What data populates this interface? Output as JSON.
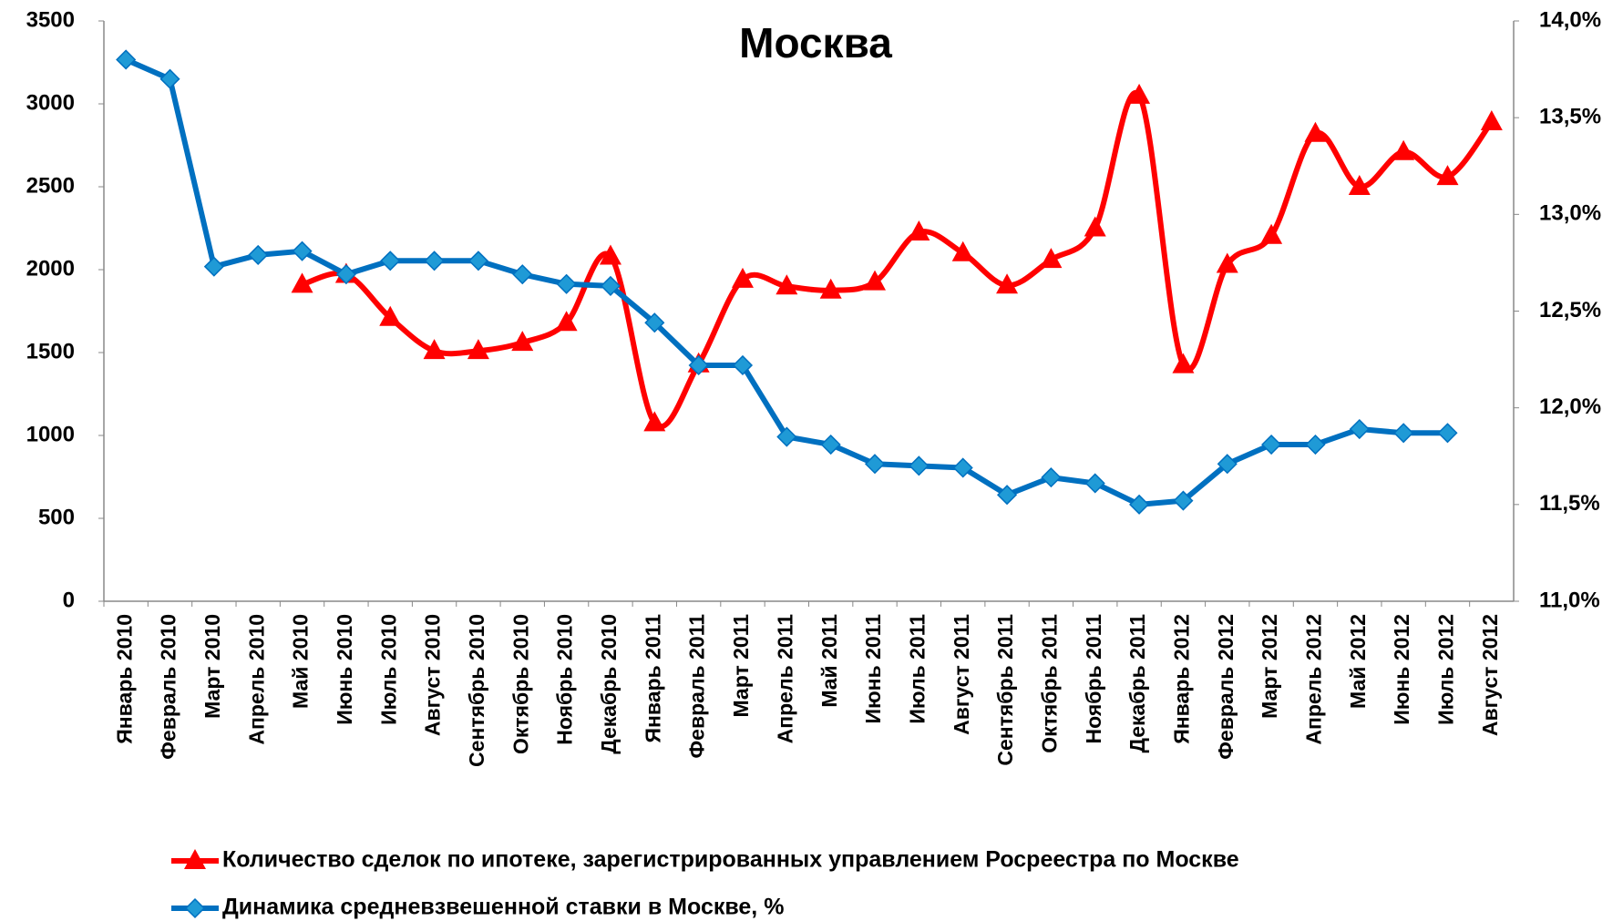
{
  "chart_data": {
    "type": "line",
    "title": "Москва",
    "categories": [
      "Январь 2010",
      "Февраль 2010",
      "Март 2010",
      "Апрель 2010",
      "Май 2010",
      "Июнь 2010",
      "Июль 2010",
      "Август 2010",
      "Сентябрь 2010",
      "Октябрь 2010",
      "Ноябрь 2010",
      "Декабрь 2010",
      "Январь 2011",
      "Февраль 2011",
      "Март 2011",
      "Апрель 2011",
      "Май 2011",
      "Июнь 2011",
      "Июль 2011",
      "Август 2011",
      "Сентябрь 2011",
      "Октябрь 2011",
      "Ноябрь 2011",
      "Декабрь 2011",
      "Январь 2012",
      "Февраль 2012",
      "Март 2012",
      "Апрель 2012",
      "Май 2012",
      "Июнь 2012",
      "Июль 2012",
      "Август 2012"
    ],
    "series": [
      {
        "name": "Количество сделок по ипотеке, зарегистрированных управлением Росреестра по Москве",
        "color": "#ff0000",
        "marker": "triangle",
        "smooth": true,
        "values": [
          null,
          null,
          null,
          null,
          1910,
          1970,
          1710,
          1510,
          1510,
          1560,
          1680,
          2080,
          1075,
          1430,
          1940,
          1900,
          1875,
          1925,
          2225,
          2100,
          1905,
          2060,
          2250,
          3050,
          1425,
          2030,
          2205,
          2820,
          2500,
          2710,
          2560,
          2890
        ]
      },
      {
        "name": "Динамика средневзвешенной ставки в Москве, %",
        "color": "#0070c0",
        "marker": "diamond",
        "axis": "y2",
        "values": [
          13.8,
          13.7,
          12.73,
          12.79,
          12.81,
          12.69,
          12.76,
          12.76,
          12.76,
          12.69,
          12.64,
          12.63,
          12.44,
          12.22,
          12.22,
          11.85,
          11.81,
          11.71,
          11.7,
          11.69,
          11.55,
          11.64,
          11.61,
          11.5,
          11.52,
          11.71,
          11.81,
          11.81,
          11.89,
          11.87,
          11.87,
          null
        ]
      }
    ],
    "ylim": [
      0,
      3500
    ],
    "yticks": [
      0,
      500,
      1000,
      1500,
      2000,
      2500,
      3000,
      3500
    ],
    "y2lim": [
      11,
      14
    ],
    "y2ticks": [
      {
        "value": 11,
        "label": "11,0%"
      },
      {
        "value": 11.5,
        "label": "11,5%"
      },
      {
        "value": 12,
        "label": "12,0%"
      },
      {
        "value": 12.5,
        "label": "12,5%"
      },
      {
        "value": 13,
        "label": "13,0%"
      },
      {
        "value": 13.5,
        "label": "13,5%"
      },
      {
        "value": 14,
        "label": "14,0%"
      }
    ],
    "grid": false
  }
}
